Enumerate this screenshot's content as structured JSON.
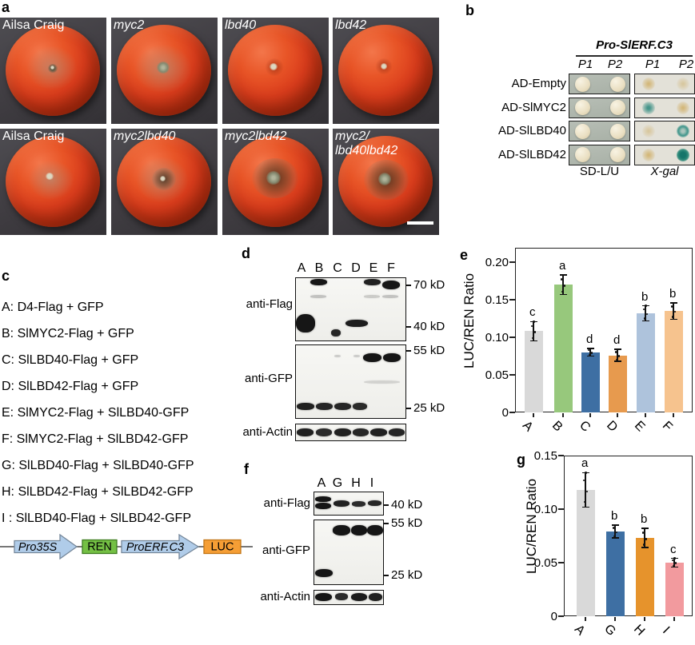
{
  "panel_a": {
    "label": "a",
    "tiles": [
      {
        "lines": [
          "Ailsa Craig"
        ],
        "italic": false,
        "rot": "mild"
      },
      {
        "lines": [
          "myc2"
        ],
        "italic": true,
        "rot": "moderate"
      },
      {
        "lines": [
          "lbd40"
        ],
        "italic": true,
        "rot": "clean"
      },
      {
        "lines": [
          "lbd42"
        ],
        "italic": true,
        "rot": "clean2"
      },
      {
        "lines": [
          "Ailsa Craig"
        ],
        "italic": false,
        "rot": "mild2"
      },
      {
        "lines": [
          "myc2lbd40"
        ],
        "italic": true,
        "rot": "moderate2"
      },
      {
        "lines": [
          "myc2lbd42"
        ],
        "italic": true,
        "rot": "severe"
      },
      {
        "lines": [
          "myc2/",
          "lbd40lbd42"
        ],
        "italic": true,
        "rot": "severe2"
      }
    ]
  },
  "panel_b": {
    "label": "b",
    "header": "Pro-SlERF.C3",
    "col_labels": [
      "P1",
      "P2",
      "P1",
      "P2"
    ],
    "rows": [
      {
        "label": "AD-Empty",
        "xgal": [
          "yellow",
          "yellow-faint"
        ]
      },
      {
        "label": "AD-SlMYC2",
        "xgal": [
          "teal",
          "yellow"
        ]
      },
      {
        "label": "AD-SlLBD40",
        "xgal": [
          "yellow-faint",
          "teal-ring"
        ]
      },
      {
        "label": "AD-SlLBD42",
        "xgal": [
          "yellow",
          "teal-strong"
        ]
      }
    ],
    "plate_labels": [
      "SD-L/U",
      "X-gal"
    ]
  },
  "panel_c": {
    "label": "c",
    "constructs": [
      "A: D4-Flag + GFP",
      "B: SlMYC2-Flag + GFP",
      "C: SlLBD40-Flag + GFP",
      "D: SlLBD42-Flag + GFP",
      "E: SlMYC2-Flag + SlLBD40-GFP",
      "F: SlMYC2-Flag + SlLBD42-GFP",
      "G: SlLBD40-Flag + SlLBD40-GFP",
      "H: SlLBD42-Flag + SlLBD42-GFP",
      "I : SlLBD40-Flag + SlLBD42-GFP"
    ],
    "diagram": {
      "pro1": "Pro35S",
      "gene1": "REN",
      "pro2": "ProERF.C3",
      "gene2": "LUC"
    }
  },
  "panel_d": {
    "label": "d",
    "lanes": [
      "A",
      "B",
      "C",
      "D",
      "E",
      "F"
    ],
    "antibodies": [
      "anti-Flag",
      "anti-GFP",
      "anti-Actin"
    ],
    "markers": [
      "70 kD",
      "40 kD",
      "55 kD",
      "25 kD"
    ]
  },
  "panel_f": {
    "label": "f",
    "lanes": [
      "A",
      "G",
      "H",
      "I"
    ],
    "antibodies": [
      "anti-Flag",
      "anti-GFP",
      "anti-Actin"
    ],
    "markers": [
      "40 kD",
      "55 kD",
      "25 kD"
    ]
  },
  "chart_data": [
    {
      "panel": "e",
      "type": "bar",
      "categories": [
        "A",
        "B",
        "C",
        "D",
        "E",
        "F"
      ],
      "values": [
        0.108,
        0.17,
        0.08,
        0.076,
        0.132,
        0.135
      ],
      "errors": [
        0.013,
        0.013,
        0.005,
        0.008,
        0.01,
        0.011
      ],
      "sig_letters": [
        "c",
        "a",
        "d",
        "d",
        "b",
        "b"
      ],
      "bar_colors": [
        "#d9d9d9",
        "#97c87c",
        "#3e6fa3",
        "#e79a4e",
        "#aec3dc",
        "#f6c38e"
      ],
      "title": "",
      "xlabel": "",
      "ylabel": "LUC/REN Ratio",
      "yticks": [
        0,
        0.05,
        0.1,
        0.15,
        0.2
      ],
      "ylim": [
        0,
        0.22
      ],
      "grid": false,
      "legend": false
    },
    {
      "panel": "g",
      "type": "bar",
      "categories": [
        "A",
        "G",
        "H",
        "I"
      ],
      "values": [
        0.118,
        0.079,
        0.073,
        0.05
      ],
      "errors": [
        0.016,
        0.006,
        0.009,
        0.004
      ],
      "sig_letters": [
        "a",
        "b",
        "b",
        "c"
      ],
      "bar_colors": [
        "#d9d9d9",
        "#3e6fa3",
        "#e6932c",
        "#f29a9e"
      ],
      "title": "",
      "xlabel": "",
      "ylabel": "LUC/REN Ratio",
      "yticks": [
        0,
        0.05,
        0.1,
        0.15
      ],
      "ylim": [
        0,
        0.15
      ],
      "grid": false,
      "legend": false
    }
  ]
}
